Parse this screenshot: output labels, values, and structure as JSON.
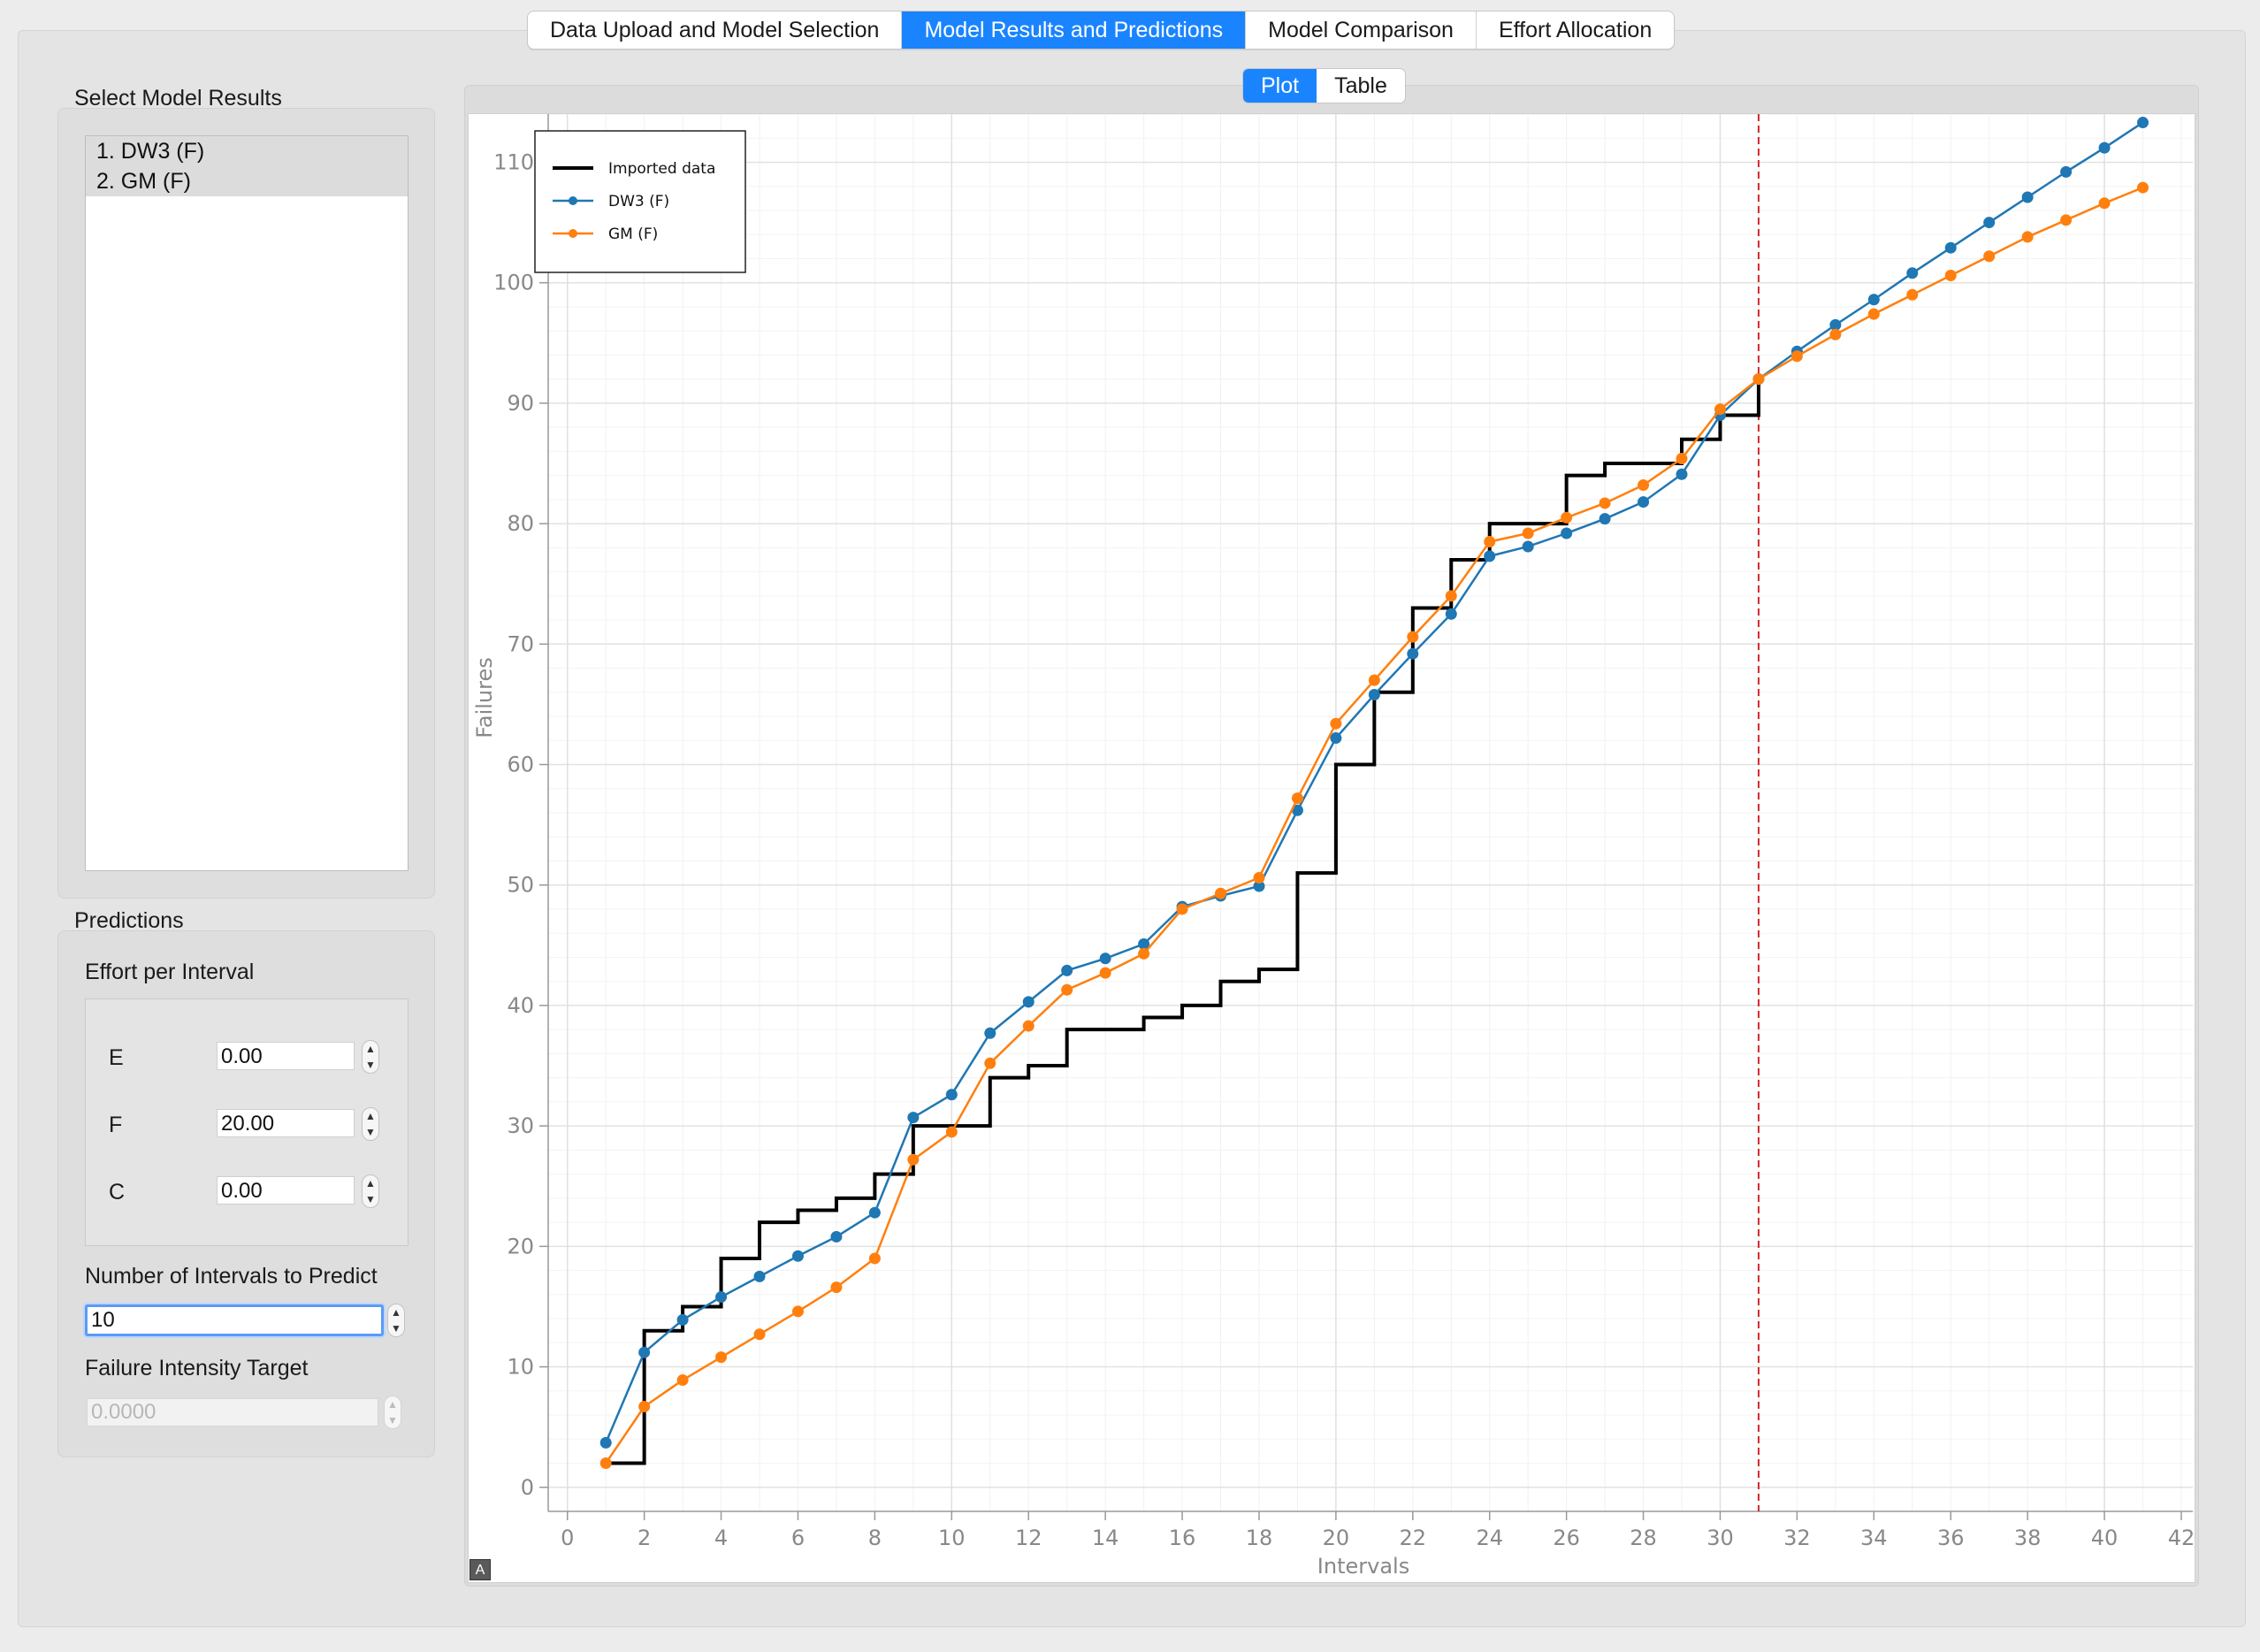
{
  "tabs": [
    {
      "label": "Data Upload and Model Selection",
      "active": false
    },
    {
      "label": "Model Results and Predictions",
      "active": true
    },
    {
      "label": "Model Comparison",
      "active": false
    },
    {
      "label": "Effort Allocation",
      "active": false
    }
  ],
  "left": {
    "select_title": "Select Model Results",
    "models": [
      "1. DW3 (F)",
      "2. GM (F)"
    ],
    "predictions_title": "Predictions",
    "effort_title": "Effort per Interval",
    "effort": [
      {
        "label": "E",
        "value": "0.00"
      },
      {
        "label": "F",
        "value": "20.00"
      },
      {
        "label": "C",
        "value": "0.00"
      }
    ],
    "intervals_label": "Number of Intervals to Predict",
    "intervals_value": "10",
    "fit_label": "Failure Intensity Target",
    "fit_value": "0.0000"
  },
  "view_tabs": [
    {
      "label": "Plot",
      "active": true
    },
    {
      "label": "Table",
      "active": false
    }
  ],
  "auto_range_label": "A",
  "chart_data": {
    "type": "line",
    "title": "",
    "xlabel": "Intervals",
    "ylabel": "Failures",
    "xlim": [
      -0.5,
      42.3
    ],
    "ylim": [
      -2,
      114
    ],
    "xticks": [
      0,
      2,
      4,
      6,
      8,
      10,
      12,
      14,
      16,
      18,
      20,
      22,
      24,
      26,
      28,
      30,
      32,
      34,
      36,
      38,
      40,
      42
    ],
    "yticks": [
      0,
      10,
      20,
      30,
      40,
      50,
      60,
      70,
      80,
      90,
      100,
      110
    ],
    "grid": true,
    "legend_position": "top-left",
    "prediction_start_x": 31,
    "prediction_line_color": "#d62728",
    "series": [
      {
        "name": "Imported data",
        "style": "step",
        "color": "#000000",
        "x": [
          1,
          2,
          3,
          4,
          5,
          6,
          7,
          8,
          9,
          10,
          11,
          12,
          13,
          14,
          15,
          16,
          17,
          18,
          19,
          20,
          21,
          22,
          23,
          24,
          25,
          26,
          27,
          28,
          29,
          30,
          31
        ],
        "y": [
          2,
          13,
          15,
          19,
          22,
          23,
          24,
          26,
          30,
          30,
          34,
          35,
          38,
          38,
          39,
          40,
          42,
          43,
          51,
          60,
          66,
          73,
          77,
          80,
          80,
          84,
          85,
          85,
          87,
          89,
          92
        ]
      },
      {
        "name": "DW3 (F)",
        "style": "line-marker",
        "color": "#1f77b4",
        "x": [
          1,
          2,
          3,
          4,
          5,
          6,
          7,
          8,
          9,
          10,
          11,
          12,
          13,
          14,
          15,
          16,
          17,
          18,
          19,
          20,
          21,
          22,
          23,
          24,
          25,
          26,
          27,
          28,
          29,
          30,
          31,
          32,
          33,
          34,
          35,
          36,
          37,
          38,
          39,
          40,
          41
        ],
        "y": [
          3.7,
          11.2,
          13.9,
          15.8,
          17.5,
          19.2,
          20.8,
          22.8,
          30.7,
          32.6,
          37.7,
          40.3,
          42.9,
          43.9,
          45.1,
          48.2,
          49.1,
          49.9,
          56.2,
          62.2,
          65.8,
          69.2,
          72.5,
          77.3,
          78.1,
          79.2,
          80.4,
          81.8,
          84.1,
          89.0,
          92.0,
          94.3,
          96.5,
          98.6,
          100.8,
          102.9,
          105.0,
          107.1,
          109.2,
          111.2,
          113.3
        ]
      },
      {
        "name": "GM (F)",
        "style": "line-marker",
        "color": "#ff7f0e",
        "x": [
          1,
          2,
          3,
          4,
          5,
          6,
          7,
          8,
          9,
          10,
          11,
          12,
          13,
          14,
          15,
          16,
          17,
          18,
          19,
          20,
          21,
          22,
          23,
          24,
          25,
          26,
          27,
          28,
          29,
          30,
          31,
          32,
          33,
          34,
          35,
          36,
          37,
          38,
          39,
          40,
          41
        ],
        "y": [
          2.0,
          6.7,
          8.9,
          10.8,
          12.7,
          14.6,
          16.6,
          19.0,
          27.2,
          29.5,
          35.2,
          38.3,
          41.3,
          42.7,
          44.3,
          48.0,
          49.3,
          50.6,
          57.2,
          63.4,
          67.0,
          70.6,
          74.0,
          78.5,
          79.2,
          80.5,
          81.7,
          83.2,
          85.4,
          89.5,
          92.0,
          93.9,
          95.7,
          97.4,
          99.0,
          100.6,
          102.2,
          103.8,
          105.2,
          106.6,
          107.9
        ]
      }
    ]
  }
}
